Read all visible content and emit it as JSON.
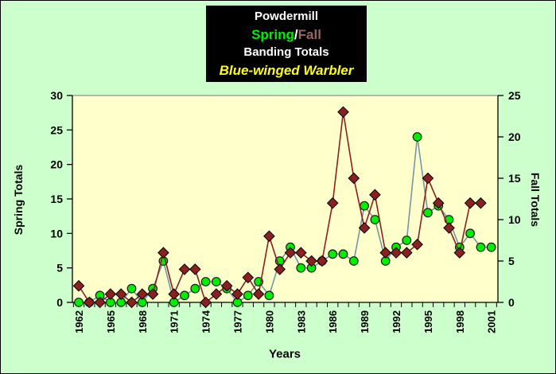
{
  "title_box": {
    "location": "Powdermill",
    "spring_word": "Spring",
    "separator": "/",
    "fall_word": "Fall",
    "line3": "Banding Totals",
    "species": "Blue-winged Warbler"
  },
  "axes": {
    "left_title": "Spring Totals",
    "right_title": "Fall Totals",
    "x_title": "Years",
    "left_ticks": [
      0,
      5,
      10,
      15,
      20,
      25,
      30
    ],
    "right_ticks": [
      0,
      5,
      10,
      15,
      20,
      25
    ],
    "x_tick_years": [
      1962,
      1965,
      1968,
      1971,
      1974,
      1977,
      1980,
      1983,
      1986,
      1989,
      1992,
      1995,
      1998,
      2001
    ]
  },
  "colors": {
    "page_background": "#ccffcc",
    "plot_background": "#ffffcc",
    "title_box_background": "#000000",
    "title_text": "#ffffff",
    "spring_text": "#00ee00",
    "fall_text": "#996666",
    "species_text": "#ffff00",
    "spring_line": "#7397a3",
    "spring_marker": "#00ee00",
    "fall_line": "#8b2020",
    "fall_marker": "#8b2020",
    "axis_line": "#000000",
    "plot_top_border": "#909090"
  },
  "chart_data": {
    "type": "line",
    "title": "Powdermill Spring/Fall Banding Totals — Blue-winged Warbler",
    "x": [
      1962,
      1963,
      1964,
      1965,
      1966,
      1967,
      1968,
      1969,
      1970,
      1971,
      1972,
      1973,
      1974,
      1975,
      1976,
      1977,
      1978,
      1979,
      1980,
      1981,
      1982,
      1983,
      1984,
      1985,
      1986,
      1987,
      1988,
      1989,
      1990,
      1991,
      1992,
      1993,
      1994,
      1995,
      1996,
      1997,
      1998,
      1999,
      2000,
      2001
    ],
    "series": [
      {
        "name": "Spring",
        "axis": "left",
        "marker": "circle",
        "values": [
          0,
          0,
          1,
          0,
          0,
          2,
          0,
          2,
          6,
          0,
          1,
          2,
          3,
          3,
          2,
          0,
          1,
          3,
          1,
          6,
          8,
          5,
          5,
          6,
          7,
          7,
          6,
          14,
          12,
          6,
          8,
          9,
          24,
          13,
          14,
          12,
          8,
          10,
          8,
          8
        ]
      },
      {
        "name": "Fall",
        "axis": "right",
        "marker": "diamond",
        "values": [
          2,
          0,
          0,
          1,
          1,
          0,
          1,
          1,
          6,
          1,
          4,
          4,
          0,
          1,
          2,
          1,
          3,
          1,
          8,
          4,
          6,
          6,
          5,
          5,
          12,
          23,
          15,
          9,
          13,
          6,
          6,
          6,
          7,
          15,
          12,
          9,
          6,
          12,
          12,
          null
        ]
      }
    ],
    "left_axis": {
      "label": "Spring Totals",
      "min": 0,
      "max": 30,
      "tick_step": 5
    },
    "right_axis": {
      "label": "Fall Totals",
      "min": 0,
      "max": 25,
      "tick_step": 5
    },
    "x_axis": {
      "label": "Years",
      "labeled_every": 3
    },
    "grid": false,
    "legend_position": "title-colored-words"
  }
}
